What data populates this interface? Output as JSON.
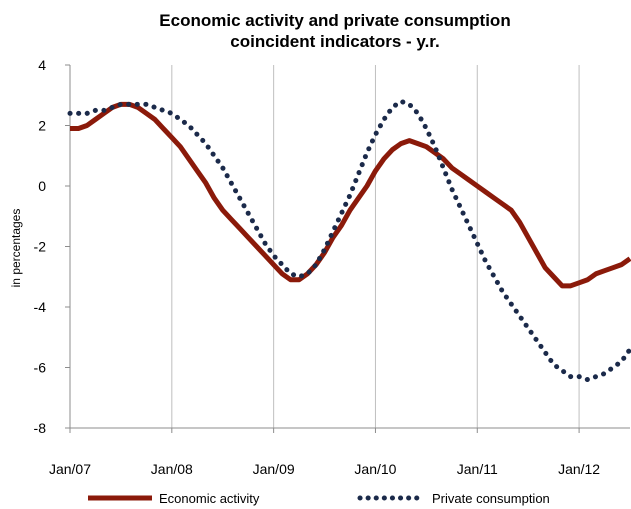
{
  "chart_data": {
    "type": "line",
    "title_line1": "Economic activity and private consumption",
    "title_line2": "coincident indicators - y.r.",
    "ylabel": "in percentages",
    "xlabel": "",
    "ylim": [
      -8,
      4
    ],
    "yticks": [
      4,
      2,
      0,
      -2,
      -4,
      -6,
      -8
    ],
    "ytick_labels": [
      "4",
      "2",
      "0",
      "-2",
      "-4",
      "-6",
      "-8"
    ],
    "xlim": [
      "2007-01",
      "2012-07"
    ],
    "xtick_labels": [
      "Jan/07",
      "Jan/08",
      "Jan/09",
      "Jan/10",
      "Jan/11",
      "Jan/12"
    ],
    "grid": "vertical",
    "legend_position": "bottom",
    "x": [
      "2007-01",
      "2007-02",
      "2007-03",
      "2007-04",
      "2007-05",
      "2007-06",
      "2007-07",
      "2007-08",
      "2007-09",
      "2007-10",
      "2007-11",
      "2007-12",
      "2008-01",
      "2008-02",
      "2008-03",
      "2008-04",
      "2008-05",
      "2008-06",
      "2008-07",
      "2008-08",
      "2008-09",
      "2008-10",
      "2008-11",
      "2008-12",
      "2009-01",
      "2009-02",
      "2009-03",
      "2009-04",
      "2009-05",
      "2009-06",
      "2009-07",
      "2009-08",
      "2009-09",
      "2009-10",
      "2009-11",
      "2009-12",
      "2010-01",
      "2010-02",
      "2010-03",
      "2010-04",
      "2010-05",
      "2010-06",
      "2010-07",
      "2010-08",
      "2010-09",
      "2010-10",
      "2010-11",
      "2010-12",
      "2011-01",
      "2011-02",
      "2011-03",
      "2011-04",
      "2011-05",
      "2011-06",
      "2011-07",
      "2011-08",
      "2011-09",
      "2011-10",
      "2011-11",
      "2011-12",
      "2012-01",
      "2012-02",
      "2012-03",
      "2012-04",
      "2012-05",
      "2012-06",
      "2012-07"
    ],
    "series": [
      {
        "name": "Economic activity",
        "color": "#8b1a0a",
        "style": "solid",
        "values": [
          1.9,
          1.9,
          2.0,
          2.2,
          2.4,
          2.6,
          2.7,
          2.7,
          2.6,
          2.4,
          2.2,
          1.9,
          1.6,
          1.3,
          0.9,
          0.5,
          0.1,
          -0.4,
          -0.8,
          -1.1,
          -1.4,
          -1.7,
          -2.0,
          -2.3,
          -2.6,
          -2.9,
          -3.1,
          -3.1,
          -2.9,
          -2.6,
          -2.2,
          -1.7,
          -1.3,
          -0.8,
          -0.4,
          0.0,
          0.5,
          0.9,
          1.2,
          1.4,
          1.5,
          1.4,
          1.3,
          1.1,
          0.9,
          0.6,
          0.4,
          0.2,
          0.0,
          -0.2,
          -0.4,
          -0.6,
          -0.8,
          -1.2,
          -1.7,
          -2.2,
          -2.7,
          -3.0,
          -3.3,
          -3.3,
          -3.2,
          -3.1,
          -2.9,
          -2.8,
          -2.7,
          -2.6,
          -2.4
        ]
      },
      {
        "name": "Private consumption",
        "color": "#1b2a4a",
        "style": "dotted",
        "values": [
          2.4,
          2.4,
          2.4,
          2.5,
          2.5,
          2.6,
          2.7,
          2.7,
          2.7,
          2.7,
          2.6,
          2.5,
          2.4,
          2.2,
          2.0,
          1.7,
          1.4,
          1.0,
          0.6,
          0.1,
          -0.4,
          -0.9,
          -1.4,
          -1.9,
          -2.3,
          -2.6,
          -2.9,
          -3.0,
          -2.9,
          -2.6,
          -2.1,
          -1.5,
          -0.9,
          -0.3,
          0.4,
          1.1,
          1.7,
          2.2,
          2.6,
          2.8,
          2.7,
          2.4,
          1.9,
          1.3,
          0.6,
          -0.1,
          -0.7,
          -1.3,
          -1.9,
          -2.5,
          -3.0,
          -3.5,
          -3.9,
          -4.3,
          -4.7,
          -5.1,
          -5.5,
          -5.9,
          -6.1,
          -6.3,
          -6.3,
          -6.4,
          -6.3,
          -6.2,
          -6.0,
          -5.8,
          -5.4
        ]
      }
    ]
  }
}
